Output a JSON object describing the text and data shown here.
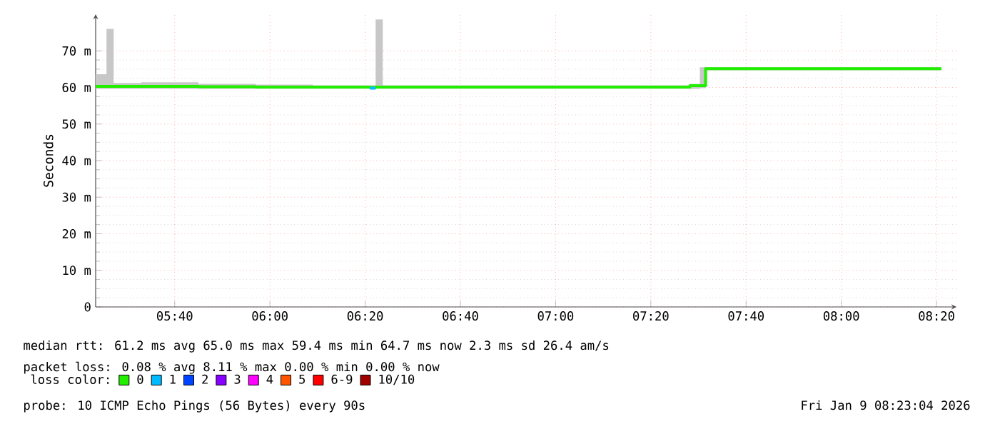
{
  "chart_data": {
    "type": "step",
    "ylabel": "Seconds",
    "legend_title": "loss color:",
    "legend": "bottom",
    "grid": true,
    "xlim": [
      5.39,
      8.403
    ],
    "ylim": [
      0,
      80
    ],
    "xticks": [
      {
        "value": 5.6667,
        "label": "05:40"
      },
      {
        "value": 6.0,
        "label": "06:00"
      },
      {
        "value": 6.3333,
        "label": "06:20"
      },
      {
        "value": 6.6667,
        "label": "06:40"
      },
      {
        "value": 7.0,
        "label": "07:00"
      },
      {
        "value": 7.3333,
        "label": "07:20"
      },
      {
        "value": 7.6667,
        "label": "07:40"
      },
      {
        "value": 8.0,
        "label": "08:00"
      },
      {
        "value": 8.3333,
        "label": "08:20"
      }
    ],
    "yticks": [
      {
        "value": 0,
        "label": "0"
      },
      {
        "value": 10,
        "label": "10 m"
      },
      {
        "value": 20,
        "label": "20 m"
      },
      {
        "value": 30,
        "label": "30 m"
      },
      {
        "value": 40,
        "label": "40 m"
      },
      {
        "value": 50,
        "label": "50 m"
      },
      {
        "value": 60,
        "label": "60 m"
      },
      {
        "value": 70,
        "label": "70 m"
      }
    ],
    "series": [
      {
        "name": "0",
        "color": "#22ee00",
        "x": [
          5.39,
          5.428,
          5.453,
          5.55,
          5.75,
          5.95,
          6.15,
          6.35,
          6.37,
          6.395,
          6.5,
          6.7,
          6.9,
          7.1,
          7.3,
          7.47,
          7.505,
          7.525,
          7.7,
          7.9,
          8.1,
          8.35
        ],
        "values": [
          60.3,
          60.3,
          60.3,
          60.3,
          60.2,
          60.1,
          60.1,
          60.0,
          60.1,
          60.1,
          60.1,
          60.1,
          60.1,
          60.1,
          60.1,
          60.5,
          60.5,
          65.1,
          65.1,
          65.1,
          65.1,
          65.1
        ],
        "lower": [
          59.6,
          59.6,
          59.6,
          59.6,
          59.6,
          59.6,
          59.6,
          59.6,
          59.6,
          59.6,
          59.6,
          59.6,
          59.6,
          59.6,
          59.6,
          59.6,
          59.8,
          64.7,
          64.7,
          64.7,
          64.7,
          64.7
        ],
        "upper": [
          63.6,
          76.0,
          61.2,
          61.4,
          61.0,
          60.8,
          60.6,
          60.6,
          78.6,
          60.6,
          60.6,
          60.6,
          60.6,
          60.6,
          60.6,
          61.0,
          65.5,
          65.5,
          65.5,
          65.5,
          65.5,
          65.5
        ]
      },
      {
        "name": "1",
        "color": "#00bbff",
        "x": [
          6.35,
          6.37
        ],
        "values": [
          59.8,
          59.8
        ]
      },
      {
        "name": "2",
        "color": "#0044ff"
      },
      {
        "name": "3",
        "color": "#8800ff"
      },
      {
        "name": "4",
        "color": "#ff00ff"
      },
      {
        "name": "5",
        "color": "#ff5500"
      },
      {
        "name": "6-9",
        "color": "#ff0000"
      },
      {
        "name": "10/10",
        "color": "#a00000"
      }
    ],
    "annotations": [
      "median rtt: 61.2 ms avg 65.0 ms max 59.4 ms min 64.7 ms now 2.3 ms sd 26.4 am/s",
      "packet loss: 0.08 % avg 8.11 % max 0.00 % min 0.00 % now",
      "probe: 10 ICMP Echo Pings (56 Bytes) every 90s",
      "Fri Jan 9 08:23:04 2026"
    ]
  }
}
